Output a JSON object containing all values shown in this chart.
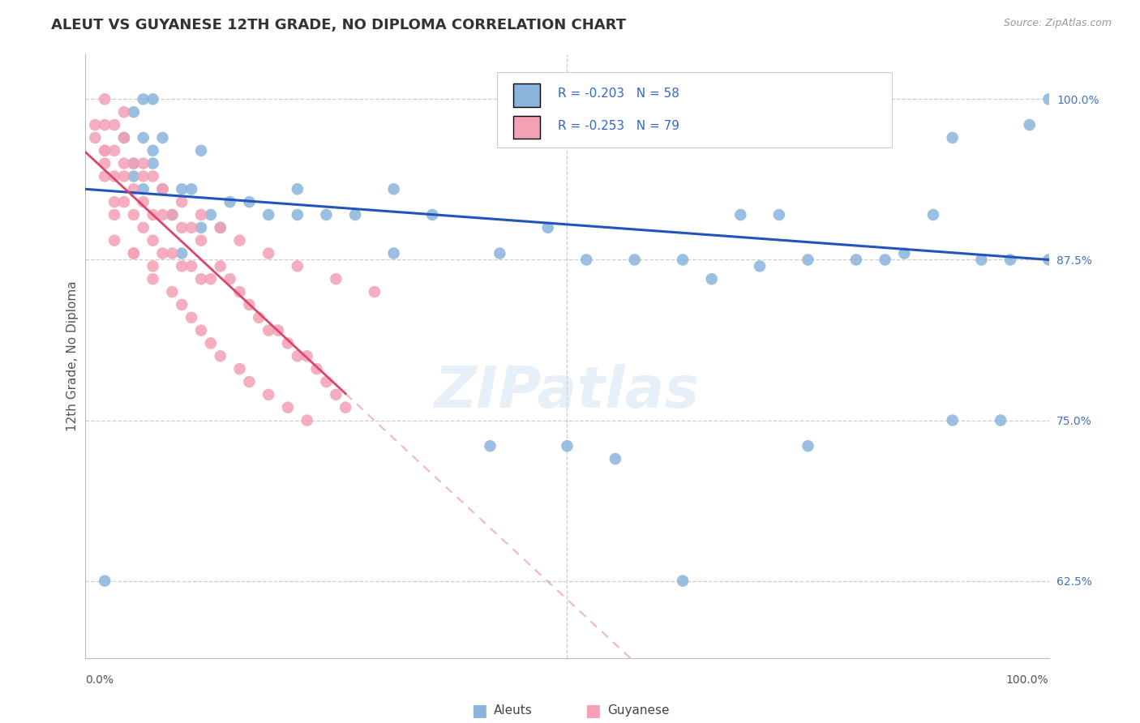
{
  "title": "ALEUT VS GUYANESE 12TH GRADE, NO DIPLOMA CORRELATION CHART",
  "source": "Source: ZipAtlas.com",
  "ylabel": "12th Grade, No Diploma",
  "ylim": [
    0.565,
    1.035
  ],
  "xlim": [
    0.0,
    1.0
  ],
  "legend_r1": "R = -0.203   N = 58",
  "legend_r2": "R = -0.253   N = 79",
  "aleut_color": "#8ab4dc",
  "guyanese_color": "#f4a0b5",
  "trend_aleut_color": "#2255bb",
  "trend_guyanese_color": "#dd4466",
  "grid_yticks": [
    1.0,
    0.875,
    0.75,
    0.625
  ],
  "right_labels": [
    "100.0%",
    "87.5%",
    "75.0%",
    "62.5%"
  ],
  "aleut_x": [
    0.02,
    0.04,
    0.05,
    0.05,
    0.06,
    0.06,
    0.06,
    0.07,
    0.07,
    0.08,
    0.08,
    0.09,
    0.1,
    0.1,
    0.11,
    0.12,
    0.13,
    0.14,
    0.15,
    0.17,
    0.19,
    0.22,
    0.25,
    0.28,
    0.32,
    0.36,
    0.43,
    0.48,
    0.52,
    0.57,
    0.62,
    0.65,
    0.68,
    0.72,
    0.75,
    0.8,
    0.83,
    0.88,
    0.9,
    0.93,
    0.96,
    0.98,
    1.0,
    1.0,
    0.7,
    0.85,
    0.9,
    0.95,
    0.75,
    0.62,
    0.5,
    0.55,
    0.42,
    0.32,
    0.22,
    0.12,
    0.07,
    0.05
  ],
  "aleut_y": [
    0.625,
    0.97,
    0.94,
    0.99,
    0.93,
    0.97,
    1.0,
    0.95,
    1.0,
    0.93,
    0.97,
    0.91,
    0.88,
    0.93,
    0.93,
    0.9,
    0.91,
    0.9,
    0.92,
    0.92,
    0.91,
    0.91,
    0.91,
    0.91,
    0.93,
    0.91,
    0.88,
    0.9,
    0.875,
    0.875,
    0.875,
    0.86,
    0.91,
    0.91,
    0.875,
    0.875,
    0.875,
    0.91,
    0.97,
    0.875,
    0.875,
    0.98,
    0.875,
    1.0,
    0.87,
    0.88,
    0.75,
    0.75,
    0.73,
    0.625,
    0.73,
    0.72,
    0.73,
    0.88,
    0.93,
    0.96,
    0.96,
    0.95
  ],
  "guyanese_x": [
    0.01,
    0.01,
    0.02,
    0.02,
    0.02,
    0.02,
    0.02,
    0.03,
    0.03,
    0.03,
    0.03,
    0.03,
    0.04,
    0.04,
    0.04,
    0.04,
    0.05,
    0.05,
    0.05,
    0.05,
    0.06,
    0.06,
    0.06,
    0.07,
    0.07,
    0.07,
    0.08,
    0.08,
    0.08,
    0.09,
    0.09,
    0.1,
    0.1,
    0.11,
    0.11,
    0.12,
    0.12,
    0.13,
    0.14,
    0.15,
    0.16,
    0.17,
    0.18,
    0.19,
    0.2,
    0.21,
    0.22,
    0.23,
    0.24,
    0.25,
    0.26,
    0.27,
    0.03,
    0.05,
    0.07,
    0.07,
    0.09,
    0.1,
    0.11,
    0.12,
    0.13,
    0.14,
    0.16,
    0.17,
    0.19,
    0.21,
    0.23,
    0.02,
    0.04,
    0.06,
    0.08,
    0.1,
    0.12,
    0.14,
    0.16,
    0.19,
    0.22,
    0.26,
    0.3
  ],
  "guyanese_y": [
    0.97,
    0.98,
    0.94,
    0.96,
    0.98,
    1.0,
    0.95,
    0.92,
    0.94,
    0.96,
    0.98,
    0.91,
    0.92,
    0.94,
    0.97,
    0.99,
    0.91,
    0.93,
    0.95,
    0.88,
    0.9,
    0.92,
    0.95,
    0.89,
    0.91,
    0.94,
    0.88,
    0.91,
    0.93,
    0.88,
    0.91,
    0.87,
    0.9,
    0.87,
    0.9,
    0.86,
    0.89,
    0.86,
    0.87,
    0.86,
    0.85,
    0.84,
    0.83,
    0.82,
    0.82,
    0.81,
    0.8,
    0.8,
    0.79,
    0.78,
    0.77,
    0.76,
    0.89,
    0.88,
    0.87,
    0.86,
    0.85,
    0.84,
    0.83,
    0.82,
    0.81,
    0.8,
    0.79,
    0.78,
    0.77,
    0.76,
    0.75,
    0.96,
    0.95,
    0.94,
    0.93,
    0.92,
    0.91,
    0.9,
    0.89,
    0.88,
    0.87,
    0.86,
    0.85
  ],
  "guyanese_trend_x_end": 0.27,
  "aleut_trend_start_y": 0.93,
  "aleut_trend_end_y": 0.875
}
